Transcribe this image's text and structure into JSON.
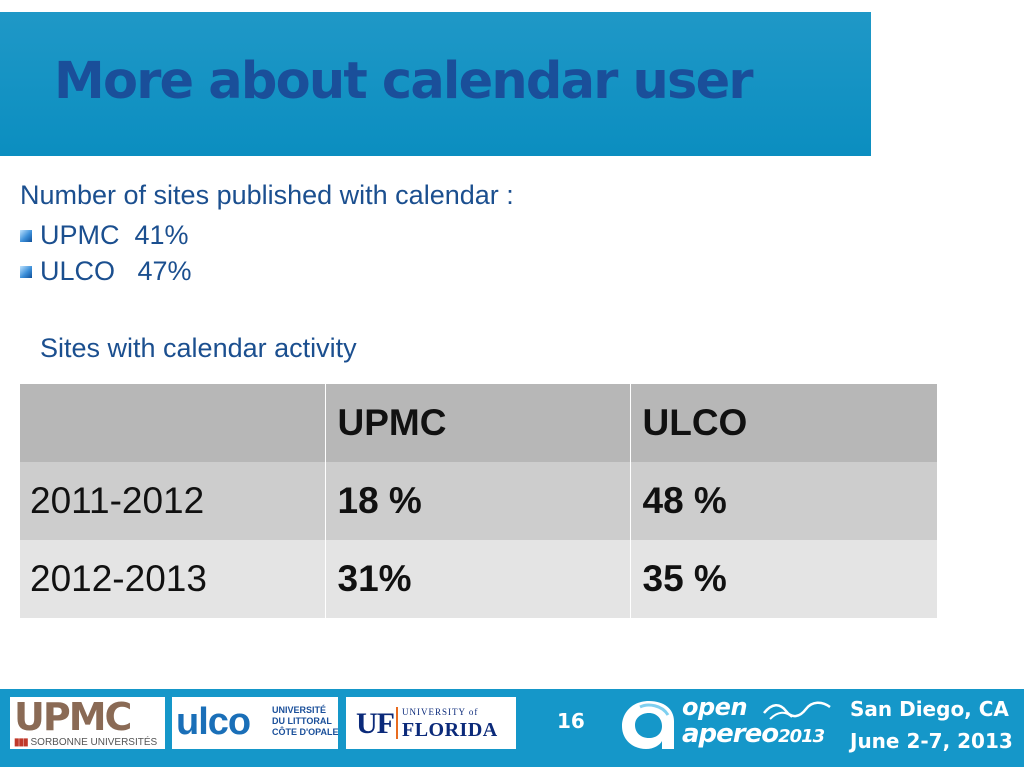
{
  "slide": {
    "title": "More about calendar user",
    "intro": "Number of sites published with calendar :",
    "bullets": [
      "UPMC  41%",
      "ULCO   47%"
    ],
    "activity_heading": "Sites with calendar activity"
  },
  "table": {
    "headers": [
      "",
      "UPMC",
      "ULCO"
    ],
    "rows": [
      {
        "year": "2011-2012",
        "upmc": "18 %",
        "ulco": "48 %"
      },
      {
        "year": "2012-2013",
        "upmc": "31%",
        "ulco": "35 %"
      }
    ]
  },
  "footer": {
    "upmc_logo": "UPMC",
    "upmc_sub": "SORBONNE UNIVERSITÉS",
    "ulco_logo": "ulco",
    "ulco_lines": [
      "UNIVERSITÉ",
      "DU LITTORAL",
      "CÔTE D'OPALE"
    ],
    "uf_mark": "UF",
    "uf_univ": "UNIVERSITY of",
    "uf_name": "FLORIDA",
    "page_number": "16",
    "open_word": "open",
    "apereo_word": "apereo",
    "apereo_year": "2013",
    "location": "San Diego, CA",
    "dates": "June 2-7, 2013"
  },
  "colors": {
    "title_band": "#0b8ec0",
    "title_text": "#1a4f9a",
    "body_text": "#1b4f8f",
    "footer_band": "#1597c9"
  }
}
